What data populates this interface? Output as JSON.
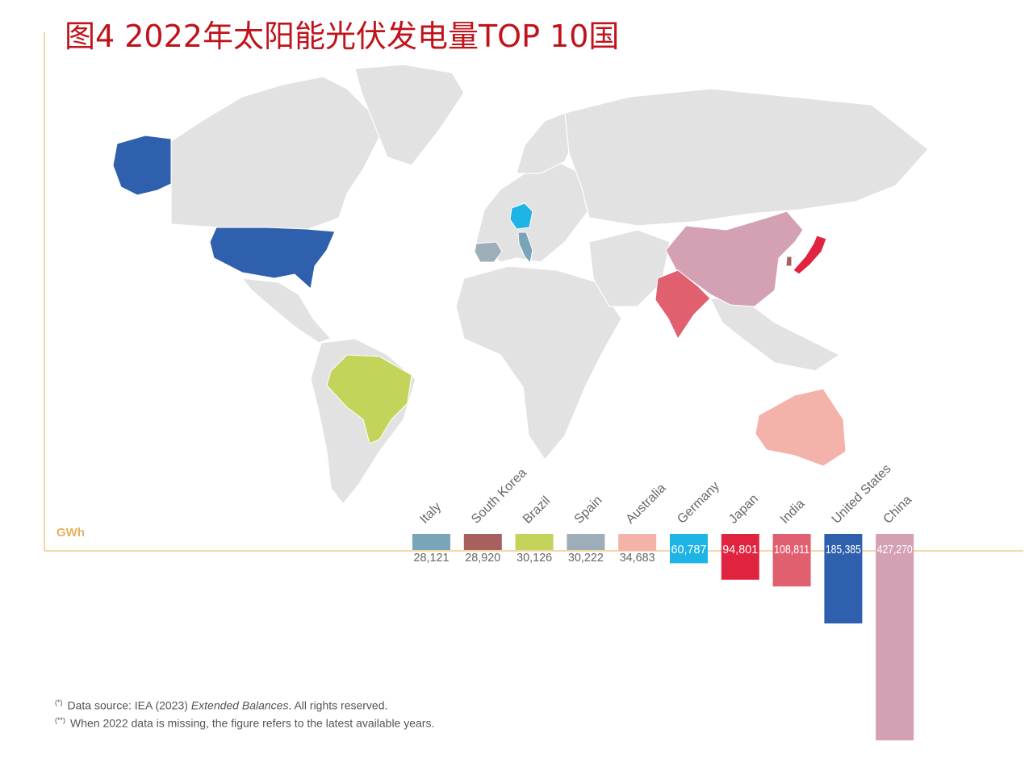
{
  "title": "图4 2022年太阳能光伏发电量TOP 10国",
  "unit_label": "GWh",
  "footnotes": {
    "note1_mark": "(*)",
    "note1_pre": "Data source: IEA (2023) ",
    "note1_em": "Extended Balances",
    "note1_post": ". All rights reserved.",
    "note2_mark": "(**)",
    "note2": "When 2022 data is missing, the figure refers to the latest available years."
  },
  "chart_data": {
    "type": "bar",
    "unit": "GWh",
    "categories": [
      "Italy",
      "South Korea",
      "Brazil",
      "Spain",
      "Australia",
      "Germany",
      "Japan",
      "India",
      "United States",
      "China"
    ],
    "values": [
      28121,
      28920,
      30126,
      30222,
      34683,
      60787,
      94801,
      108811,
      185385,
      427270
    ],
    "value_labels": [
      "28,121",
      "28,920",
      "30,126",
      "30,222",
      "34,683",
      "60,787",
      "94,801",
      "108,811",
      "185,385",
      "427,270"
    ],
    "colors": [
      "#7aa5b9",
      "#a8605e",
      "#c4d45a",
      "#9eaeb8",
      "#f3b2aa",
      "#1fb4e6",
      "#e0243f",
      "#e06070",
      "#2e60ad",
      "#d4a0b4"
    ],
    "ylim": [
      0,
      427270
    ],
    "bars_direction": "downward",
    "background": "world-map"
  }
}
